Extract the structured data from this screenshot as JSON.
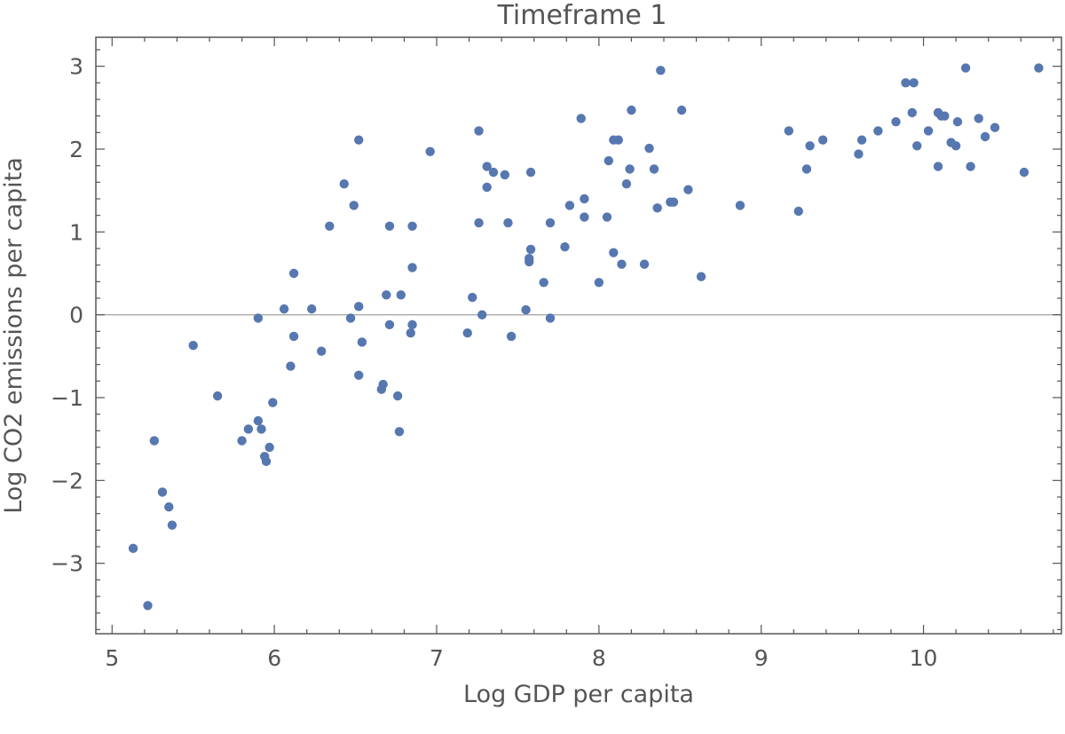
{
  "chart_data": {
    "type": "scatter",
    "title": "Timeframe 1",
    "xlabel": "Log GDP per capita",
    "ylabel": "Log CO2 emissions per capita",
    "xlim": [
      4.9,
      10.85
    ],
    "ylim": [
      -3.85,
      3.35
    ],
    "xticks": [
      5,
      6,
      7,
      8,
      9,
      10
    ],
    "xtick_labels": [
      "5",
      "6",
      "7",
      "8",
      "9",
      "10"
    ],
    "yticks": [
      -3,
      -2,
      -1,
      0,
      1,
      2,
      3
    ],
    "ytick_labels": [
      "−3",
      "−2",
      "−1",
      "0",
      "1",
      "2",
      "3"
    ],
    "reference_line_y": 0,
    "grid": false,
    "legend": "none",
    "point_color": "#5677B0",
    "series": [
      {
        "points": [
          [
            5.13,
            -2.82
          ],
          [
            5.22,
            -3.51
          ],
          [
            5.26,
            -1.52
          ],
          [
            5.31,
            -2.14
          ],
          [
            5.35,
            -2.32
          ],
          [
            5.37,
            -2.54
          ],
          [
            5.5,
            -0.37
          ],
          [
            5.65,
            -0.98
          ],
          [
            5.8,
            -1.52
          ],
          [
            5.84,
            -1.38
          ],
          [
            5.9,
            -1.28
          ],
          [
            5.92,
            -1.38
          ],
          [
            5.94,
            -1.71
          ],
          [
            5.95,
            -1.77
          ],
          [
            5.97,
            -1.6
          ],
          [
            5.99,
            -1.06
          ],
          [
            5.9,
            -0.04
          ],
          [
            6.06,
            0.07
          ],
          [
            6.1,
            -0.62
          ],
          [
            6.12,
            -0.26
          ],
          [
            6.12,
            0.5
          ],
          [
            6.23,
            0.07
          ],
          [
            6.29,
            -0.44
          ],
          [
            6.34,
            1.07
          ],
          [
            6.43,
            1.58
          ],
          [
            6.47,
            -0.04
          ],
          [
            6.49,
            1.32
          ],
          [
            6.52,
            0.1
          ],
          [
            6.52,
            -0.73
          ],
          [
            6.52,
            2.11
          ],
          [
            6.54,
            -0.33
          ],
          [
            6.66,
            -0.9
          ],
          [
            6.67,
            -0.84
          ],
          [
            6.69,
            0.24
          ],
          [
            6.71,
            1.07
          ],
          [
            6.71,
            -0.12
          ],
          [
            6.76,
            -0.98
          ],
          [
            6.77,
            -1.41
          ],
          [
            6.78,
            0.24
          ],
          [
            6.84,
            -0.22
          ],
          [
            6.85,
            0.57
          ],
          [
            6.85,
            1.07
          ],
          [
            6.85,
            -0.12
          ],
          [
            6.96,
            1.97
          ],
          [
            7.19,
            -0.22
          ],
          [
            7.22,
            0.21
          ],
          [
            7.26,
            2.22
          ],
          [
            7.26,
            1.11
          ],
          [
            7.28,
            0.0
          ],
          [
            7.31,
            1.79
          ],
          [
            7.31,
            1.54
          ],
          [
            7.35,
            1.72
          ],
          [
            7.42,
            1.69
          ],
          [
            7.44,
            1.11
          ],
          [
            7.46,
            -0.26
          ],
          [
            7.55,
            0.06
          ],
          [
            7.57,
            0.64
          ],
          [
            7.57,
            0.68
          ],
          [
            7.58,
            1.72
          ],
          [
            7.58,
            0.79
          ],
          [
            7.66,
            0.39
          ],
          [
            7.7,
            -0.04
          ],
          [
            7.7,
            1.11
          ],
          [
            7.79,
            0.82
          ],
          [
            7.82,
            1.32
          ],
          [
            7.89,
            2.37
          ],
          [
            7.91,
            1.4
          ],
          [
            7.91,
            1.18
          ],
          [
            8.0,
            0.39
          ],
          [
            8.05,
            1.18
          ],
          [
            8.06,
            1.86
          ],
          [
            8.09,
            0.75
          ],
          [
            8.09,
            2.11
          ],
          [
            8.12,
            2.11
          ],
          [
            8.14,
            0.61
          ],
          [
            8.17,
            1.58
          ],
          [
            8.19,
            1.76
          ],
          [
            8.2,
            2.47
          ],
          [
            8.28,
            0.61
          ],
          [
            8.31,
            2.01
          ],
          [
            8.34,
            1.76
          ],
          [
            8.36,
            1.29
          ],
          [
            8.38,
            2.95
          ],
          [
            8.44,
            1.36
          ],
          [
            8.46,
            1.36
          ],
          [
            8.51,
            2.47
          ],
          [
            8.55,
            1.51
          ],
          [
            8.63,
            0.46
          ],
          [
            8.87,
            1.32
          ],
          [
            9.17,
            2.22
          ],
          [
            9.23,
            1.25
          ],
          [
            9.28,
            1.76
          ],
          [
            9.3,
            2.04
          ],
          [
            9.38,
            2.11
          ],
          [
            9.6,
            1.94
          ],
          [
            9.62,
            2.11
          ],
          [
            9.72,
            2.22
          ],
          [
            9.83,
            2.33
          ],
          [
            9.89,
            2.8
          ],
          [
            9.93,
            2.44
          ],
          [
            9.94,
            2.8
          ],
          [
            9.96,
            2.04
          ],
          [
            10.03,
            2.22
          ],
          [
            10.09,
            2.44
          ],
          [
            10.09,
            1.79
          ],
          [
            10.11,
            2.4
          ],
          [
            10.13,
            2.4
          ],
          [
            10.17,
            2.08
          ],
          [
            10.2,
            2.04
          ],
          [
            10.21,
            2.33
          ],
          [
            10.26,
            2.98
          ],
          [
            10.29,
            1.79
          ],
          [
            10.34,
            2.37
          ],
          [
            10.38,
            2.15
          ],
          [
            10.44,
            2.26
          ],
          [
            10.62,
            1.72
          ],
          [
            10.71,
            2.98
          ]
        ]
      }
    ]
  }
}
